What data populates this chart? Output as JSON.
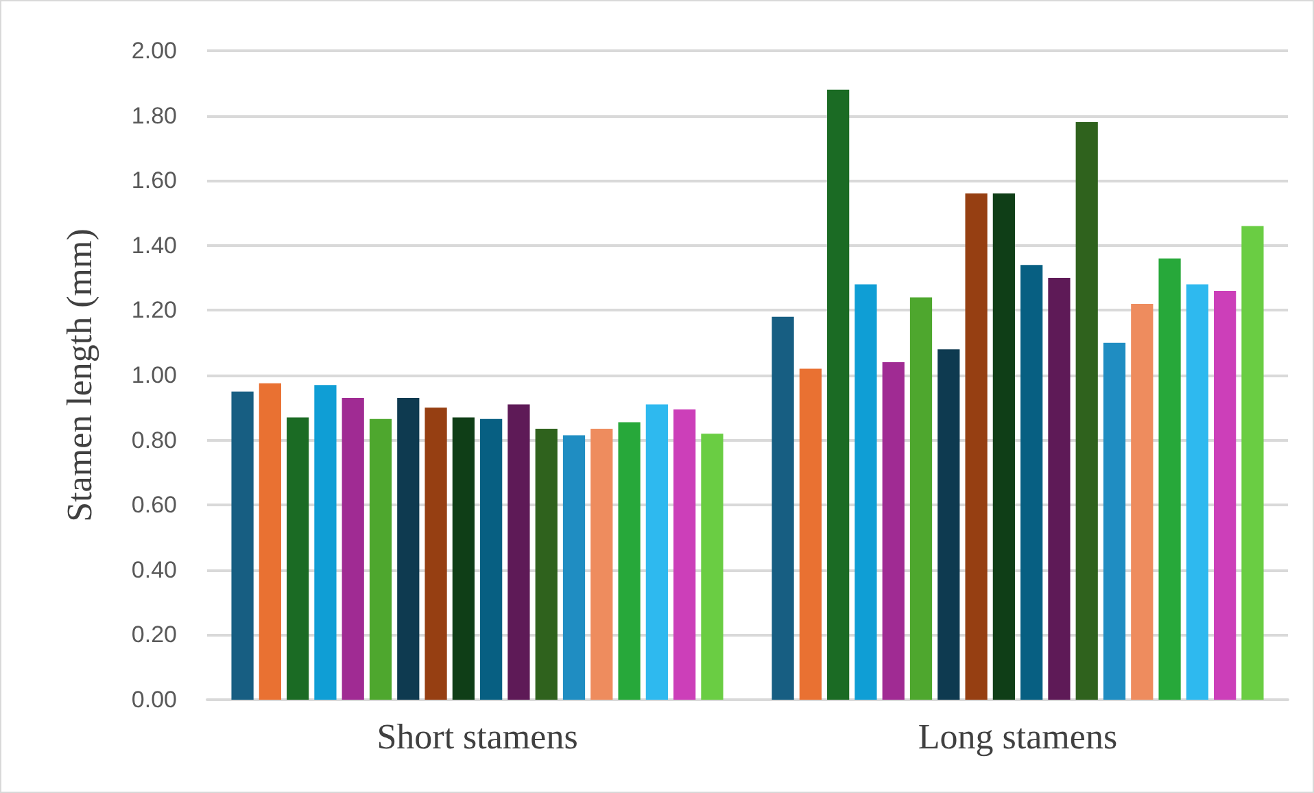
{
  "chart_data": {
    "type": "bar",
    "ylabel": "Stamen length (mm)",
    "categories": [
      "Short stamens",
      "Long stamens"
    ],
    "series": [
      {
        "color": "#175e82",
        "values": [
          0.95,
          1.18
        ]
      },
      {
        "color": "#e97132",
        "values": [
          0.975,
          1.02
        ]
      },
      {
        "color": "#1b6b24",
        "values": [
          0.87,
          1.88
        ]
      },
      {
        "color": "#0f9ed5",
        "values": [
          0.97,
          1.28
        ]
      },
      {
        "color": "#a02b93",
        "values": [
          0.93,
          1.04
        ]
      },
      {
        "color": "#4ea72e",
        "values": [
          0.865,
          1.24
        ]
      },
      {
        "color": "#0e3a50",
        "values": [
          0.93,
          1.08
        ]
      },
      {
        "color": "#963f12",
        "values": [
          0.9,
          1.56
        ]
      },
      {
        "color": "#0f3e17",
        "values": [
          0.87,
          1.56
        ]
      },
      {
        "color": "#075f82",
        "values": [
          0.865,
          1.34
        ]
      },
      {
        "color": "#5e1a57",
        "values": [
          0.91,
          1.3
        ]
      },
      {
        "color": "#2f621d",
        "values": [
          0.835,
          1.78
        ]
      },
      {
        "color": "#1f8dc2",
        "values": [
          0.815,
          1.1
        ]
      },
      {
        "color": "#ee8c5e",
        "values": [
          0.835,
          1.22
        ]
      },
      {
        "color": "#27a83a",
        "values": [
          0.855,
          1.36
        ]
      },
      {
        "color": "#2eb9ef",
        "values": [
          0.91,
          1.28
        ]
      },
      {
        "color": "#cc3fb9",
        "values": [
          0.895,
          1.26
        ]
      },
      {
        "color": "#6acd43",
        "values": [
          0.82,
          1.46
        ]
      }
    ],
    "ylim": [
      0,
      2
    ],
    "yticks": [
      {
        "value": 0,
        "label": "0.00"
      },
      {
        "value": 0.2,
        "label": "0.20"
      },
      {
        "value": 0.4,
        "label": "0.40"
      },
      {
        "value": 0.6,
        "label": "0.60"
      },
      {
        "value": 0.8,
        "label": "0.80"
      },
      {
        "value": 1,
        "label": "1.00"
      },
      {
        "value": 1.2,
        "label": "1.20"
      },
      {
        "value": 1.4,
        "label": "1.40"
      },
      {
        "value": 1.6,
        "label": "1.60"
      },
      {
        "value": 1.8,
        "label": "1.80"
      },
      {
        "value": 2,
        "label": "2.00"
      }
    ],
    "grid": true
  }
}
